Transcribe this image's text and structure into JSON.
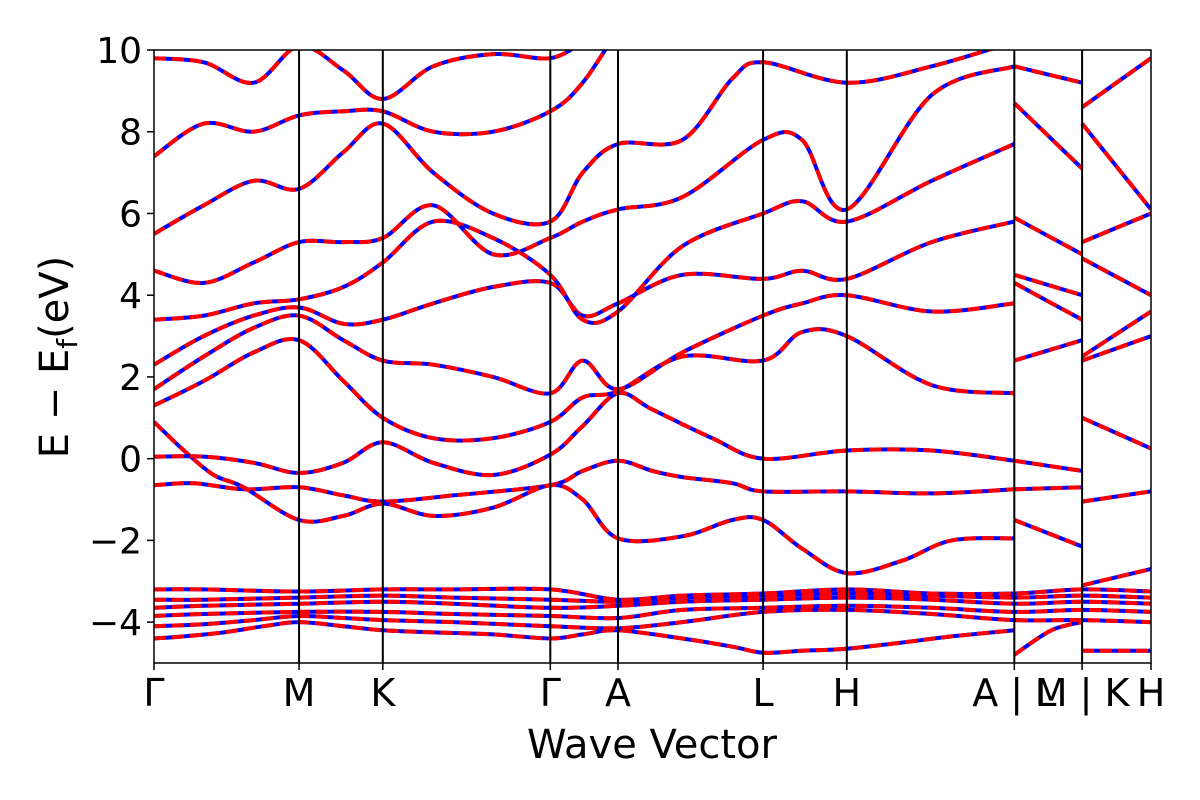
{
  "chart_data": {
    "type": "line",
    "title": "",
    "xlabel": "Wave Vector",
    "ylabel": "E − E",
    "ylabel_sub": "f",
    "ylabel_unit": "(eV)",
    "ylim": [
      -5,
      10
    ],
    "yticks": [
      {
        "value": 10,
        "label": "10"
      },
      {
        "value": 8,
        "label": "8"
      },
      {
        "value": 6,
        "label": "6"
      },
      {
        "value": 4,
        "label": "4"
      },
      {
        "value": 2,
        "label": "2"
      },
      {
        "value": 0,
        "label": "0"
      },
      {
        "value": -2,
        "label": "−2"
      },
      {
        "value": -4,
        "label": "−4"
      }
    ],
    "xlim": [
      0,
      1
    ],
    "kpoints": [
      {
        "pos": 0.0,
        "label": "Γ"
      },
      {
        "pos": 0.1455,
        "label": "M"
      },
      {
        "pos": 0.2295,
        "label": "K"
      },
      {
        "pos": 0.3975,
        "label": "Γ"
      },
      {
        "pos": 0.4654,
        "label": "A"
      },
      {
        "pos": 0.6109,
        "label": "L"
      },
      {
        "pos": 0.6949,
        "label": "H"
      },
      {
        "pos": 0.8629,
        "label": "A | L"
      },
      {
        "pos": 0.9309,
        "label": "M | K"
      },
      {
        "pos": 1.0,
        "label": "H"
      }
    ],
    "grid": false,
    "legend": "none",
    "series_styles": [
      {
        "color": "#0000ff",
        "style": "solid"
      },
      {
        "color": "#ff0000",
        "style": "dashed"
      }
    ],
    "bands": [
      [
        [
          0.0,
          -4.4
        ],
        [
          0.03,
          -4.35
        ],
        [
          0.07,
          -4.25
        ],
        [
          0.11,
          -4.1
        ],
        [
          0.1455,
          -4.0
        ],
        [
          0.19,
          -4.1
        ],
        [
          0.2295,
          -4.2
        ],
        [
          0.28,
          -4.25
        ],
        [
          0.34,
          -4.3
        ],
        [
          0.3975,
          -4.4
        ],
        [
          0.43,
          -4.3
        ],
        [
          0.4654,
          -4.2
        ],
        [
          0.53,
          -4.4
        ],
        [
          0.58,
          -4.6
        ],
        [
          0.6109,
          -4.75
        ],
        [
          0.65,
          -4.7
        ],
        [
          0.6949,
          -4.65
        ],
        [
          0.75,
          -4.5
        ],
        [
          0.8,
          -4.35
        ],
        [
          0.8629,
          -4.2
        ],
        [
          0.8629,
          -4.8
        ],
        [
          0.9,
          -4.2
        ],
        [
          0.9309,
          -4.0
        ],
        [
          0.9309,
          -4.7
        ],
        [
          1.0,
          -4.7
        ]
      ],
      [
        [
          0.0,
          -4.1
        ],
        [
          0.05,
          -4.05
        ],
        [
          0.1,
          -3.95
        ],
        [
          0.1455,
          -3.85
        ],
        [
          0.19,
          -3.9
        ],
        [
          0.2295,
          -3.95
        ],
        [
          0.3,
          -4.0
        ],
        [
          0.3975,
          -4.1
        ],
        [
          0.4654,
          -4.15
        ],
        [
          0.53,
          -4.0
        ],
        [
          0.6109,
          -3.75
        ],
        [
          0.6949,
          -3.7
        ],
        [
          0.78,
          -3.8
        ],
        [
          0.8629,
          -3.95
        ],
        [
          0.9309,
          -3.95
        ],
        [
          1.0,
          -4.0
        ]
      ],
      [
        [
          0.0,
          -3.85
        ],
        [
          0.05,
          -3.8
        ],
        [
          0.1455,
          -3.75
        ],
        [
          0.2295,
          -3.75
        ],
        [
          0.3,
          -3.8
        ],
        [
          0.3975,
          -3.85
        ],
        [
          0.4654,
          -3.9
        ],
        [
          0.53,
          -3.7
        ],
        [
          0.6109,
          -3.65
        ],
        [
          0.6949,
          -3.6
        ],
        [
          0.78,
          -3.65
        ],
        [
          0.8629,
          -3.75
        ],
        [
          0.9309,
          -3.7
        ],
        [
          1.0,
          -3.75
        ]
      ],
      [
        [
          0.0,
          -3.65
        ],
        [
          0.05,
          -3.6
        ],
        [
          0.1455,
          -3.55
        ],
        [
          0.2295,
          -3.5
        ],
        [
          0.3,
          -3.55
        ],
        [
          0.3975,
          -3.65
        ],
        [
          0.4654,
          -3.6
        ],
        [
          0.53,
          -3.5
        ],
        [
          0.6109,
          -3.45
        ],
        [
          0.6949,
          -3.4
        ],
        [
          0.78,
          -3.45
        ],
        [
          0.8629,
          -3.55
        ],
        [
          0.9309,
          -3.5
        ],
        [
          1.0,
          -3.55
        ]
      ],
      [
        [
          0.0,
          -3.45
        ],
        [
          0.05,
          -3.45
        ],
        [
          0.1455,
          -3.4
        ],
        [
          0.2295,
          -3.35
        ],
        [
          0.3,
          -3.4
        ],
        [
          0.3975,
          -3.45
        ],
        [
          0.4654,
          -3.5
        ],
        [
          0.53,
          -3.4
        ],
        [
          0.6109,
          -3.35
        ],
        [
          0.6949,
          -3.3
        ],
        [
          0.78,
          -3.35
        ],
        [
          0.8629,
          -3.4
        ],
        [
          0.9309,
          -3.35
        ],
        [
          1.0,
          -3.4
        ]
      ],
      [
        [
          0.0,
          -3.2
        ],
        [
          0.05,
          -3.2
        ],
        [
          0.1455,
          -3.25
        ],
        [
          0.2295,
          -3.2
        ],
        [
          0.3,
          -3.2
        ],
        [
          0.3975,
          -3.2
        ],
        [
          0.4654,
          -3.45
        ],
        [
          0.53,
          -3.35
        ],
        [
          0.6109,
          -3.3
        ],
        [
          0.6949,
          -3.2
        ],
        [
          0.78,
          -3.3
        ],
        [
          0.8629,
          -3.3
        ],
        [
          0.9309,
          -3.2
        ],
        [
          1.0,
          -3.25
        ]
      ],
      [
        [
          0.0,
          -0.65
        ],
        [
          0.04,
          -0.6
        ],
        [
          0.09,
          -0.75
        ],
        [
          0.1455,
          -0.7
        ],
        [
          0.19,
          -0.9
        ],
        [
          0.2295,
          -1.05
        ],
        [
          0.3,
          -0.9
        ],
        [
          0.3975,
          -0.65
        ],
        [
          0.43,
          -0.3
        ],
        [
          0.4654,
          -0.05
        ],
        [
          0.5,
          -0.3
        ],
        [
          0.53,
          -0.45
        ],
        [
          0.58,
          -0.6
        ],
        [
          0.6109,
          -0.8
        ],
        [
          0.6949,
          -0.8
        ],
        [
          0.78,
          -0.85
        ],
        [
          0.8629,
          -0.75
        ],
        [
          0.8629,
          -0.75
        ],
        [
          0.9309,
          -0.7
        ],
        [
          0.9309,
          -1.05
        ],
        [
          1.0,
          -0.8
        ]
      ],
      [
        [
          0.0,
          0.9
        ],
        [
          0.03,
          0.2
        ],
        [
          0.06,
          -0.4
        ],
        [
          0.09,
          -0.7
        ],
        [
          0.1455,
          -1.5
        ],
        [
          0.19,
          -1.4
        ],
        [
          0.2295,
          -1.1
        ],
        [
          0.28,
          -1.4
        ],
        [
          0.34,
          -1.2
        ],
        [
          0.3975,
          -0.65
        ],
        [
          0.43,
          -1.0
        ],
        [
          0.4654,
          -1.95
        ],
        [
          0.53,
          -1.9
        ],
        [
          0.58,
          -1.5
        ],
        [
          0.6109,
          -1.5
        ],
        [
          0.65,
          -2.2
        ],
        [
          0.6949,
          -2.8
        ],
        [
          0.75,
          -2.5
        ],
        [
          0.8,
          -2.0
        ],
        [
          0.8629,
          -1.95
        ],
        [
          0.8629,
          -1.5
        ],
        [
          0.9309,
          -2.15
        ],
        [
          0.9309,
          -3.1
        ],
        [
          1.0,
          -2.7
        ]
      ],
      [
        [
          0.0,
          0.05
        ],
        [
          0.05,
          0.05
        ],
        [
          0.1,
          -0.1
        ],
        [
          0.1455,
          -0.35
        ],
        [
          0.19,
          -0.1
        ],
        [
          0.2295,
          0.4
        ],
        [
          0.28,
          -0.1
        ],
        [
          0.34,
          -0.4
        ],
        [
          0.3975,
          0.1
        ],
        [
          0.43,
          0.8
        ],
        [
          0.4654,
          1.6
        ],
        [
          0.5,
          1.2
        ],
        [
          0.56,
          0.5
        ],
        [
          0.6109,
          0.0
        ],
        [
          0.6949,
          0.2
        ],
        [
          0.78,
          0.2
        ],
        [
          0.8629,
          -0.05
        ],
        [
          0.8629,
          -0.05
        ],
        [
          0.9309,
          -0.3
        ],
        [
          0.9309,
          1.0
        ],
        [
          1.0,
          0.25
        ]
      ],
      [
        [
          0.0,
          1.3
        ],
        [
          0.05,
          1.9
        ],
        [
          0.1,
          2.6
        ],
        [
          0.1455,
          2.9
        ],
        [
          0.19,
          1.9
        ],
        [
          0.2295,
          1.0
        ],
        [
          0.28,
          0.5
        ],
        [
          0.34,
          0.5
        ],
        [
          0.3975,
          0.9
        ],
        [
          0.43,
          1.5
        ],
        [
          0.4654,
          1.65
        ],
        [
          0.53,
          2.5
        ],
        [
          0.6109,
          2.4
        ],
        [
          0.65,
          3.1
        ],
        [
          0.6949,
          3.0
        ],
        [
          0.78,
          1.8
        ],
        [
          0.8629,
          1.6
        ],
        [
          0.8629,
          2.4
        ],
        [
          0.9309,
          2.9
        ],
        [
          0.9309,
          2.4
        ],
        [
          1.0,
          3.0
        ]
      ],
      [
        [
          0.0,
          1.7
        ],
        [
          0.05,
          2.5
        ],
        [
          0.1,
          3.2
        ],
        [
          0.1455,
          3.5
        ],
        [
          0.19,
          2.9
        ],
        [
          0.2295,
          2.4
        ],
        [
          0.28,
          2.3
        ],
        [
          0.34,
          2.0
        ],
        [
          0.3975,
          1.6
        ],
        [
          0.43,
          2.4
        ],
        [
          0.4654,
          1.7
        ],
        [
          0.53,
          2.6
        ],
        [
          0.6109,
          3.5
        ],
        [
          0.65,
          3.8
        ],
        [
          0.6949,
          4.0
        ],
        [
          0.78,
          3.6
        ],
        [
          0.8629,
          3.8
        ],
        [
          0.8629,
          4.3
        ],
        [
          0.9309,
          3.4
        ],
        [
          0.9309,
          2.5
        ],
        [
          1.0,
          3.6
        ]
      ],
      [
        [
          0.0,
          2.3
        ],
        [
          0.05,
          3.0
        ],
        [
          0.1,
          3.5
        ],
        [
          0.1455,
          3.7
        ],
        [
          0.19,
          3.3
        ],
        [
          0.2295,
          3.4
        ],
        [
          0.28,
          3.8
        ],
        [
          0.34,
          4.2
        ],
        [
          0.3975,
          4.3
        ],
        [
          0.43,
          3.5
        ],
        [
          0.4654,
          3.8
        ],
        [
          0.53,
          4.5
        ],
        [
          0.6109,
          4.4
        ],
        [
          0.65,
          4.6
        ],
        [
          0.6949,
          4.4
        ],
        [
          0.78,
          5.3
        ],
        [
          0.8629,
          5.8
        ],
        [
          0.8629,
          4.5
        ],
        [
          0.9309,
          4.0
        ],
        [
          0.9309,
          4.9
        ],
        [
          1.0,
          4.0
        ]
      ],
      [
        [
          0.0,
          3.4
        ],
        [
          0.05,
          3.5
        ],
        [
          0.1,
          3.8
        ],
        [
          0.1455,
          3.9
        ],
        [
          0.19,
          4.2
        ],
        [
          0.2295,
          4.8
        ],
        [
          0.28,
          5.8
        ],
        [
          0.34,
          5.4
        ],
        [
          0.3975,
          4.5
        ],
        [
          0.43,
          3.4
        ],
        [
          0.4654,
          3.6
        ],
        [
          0.53,
          5.2
        ],
        [
          0.6109,
          6.0
        ],
        [
          0.65,
          6.3
        ],
        [
          0.6949,
          5.8
        ],
        [
          0.78,
          6.8
        ],
        [
          0.8629,
          7.7
        ],
        [
          0.8629,
          5.9
        ],
        [
          0.9309,
          5.0
        ],
        [
          0.9309,
          5.3
        ],
        [
          1.0,
          6.0
        ]
      ],
      [
        [
          0.0,
          4.6
        ],
        [
          0.05,
          4.3
        ],
        [
          0.1,
          4.8
        ],
        [
          0.1455,
          5.3
        ],
        [
          0.19,
          5.3
        ],
        [
          0.2295,
          5.4
        ],
        [
          0.28,
          6.2
        ],
        [
          0.34,
          5.0
        ],
        [
          0.3975,
          5.4
        ],
        [
          0.43,
          5.8
        ],
        [
          0.4654,
          6.1
        ],
        [
          0.53,
          6.4
        ],
        [
          0.6109,
          7.8
        ],
        [
          0.65,
          7.8
        ],
        [
          0.6949,
          6.1
        ],
        [
          0.78,
          8.9
        ],
        [
          0.8629,
          9.6
        ],
        [
          0.8629,
          8.7
        ],
        [
          0.9309,
          7.1
        ],
        [
          0.9309,
          8.2
        ],
        [
          1.0,
          6.1
        ]
      ],
      [
        [
          0.0,
          5.5
        ],
        [
          0.05,
          6.2
        ],
        [
          0.1,
          6.8
        ],
        [
          0.1455,
          6.6
        ],
        [
          0.19,
          7.5
        ],
        [
          0.2295,
          8.2
        ],
        [
          0.28,
          7.0
        ],
        [
          0.34,
          6.0
        ],
        [
          0.3975,
          5.8
        ],
        [
          0.43,
          7.0
        ],
        [
          0.4654,
          7.7
        ],
        [
          0.53,
          7.8
        ],
        [
          0.58,
          9.3
        ],
        [
          0.6109,
          9.7
        ],
        [
          0.6949,
          9.2
        ],
        [
          0.78,
          9.6
        ],
        [
          0.8629,
          10.2
        ],
        [
          0.8629,
          9.6
        ],
        [
          0.9309,
          9.2
        ],
        [
          0.9309,
          8.6
        ],
        [
          1.0,
          9.8
        ]
      ],
      [
        [
          0.0,
          7.4
        ],
        [
          0.05,
          8.2
        ],
        [
          0.1,
          8.0
        ],
        [
          0.1455,
          8.4
        ],
        [
          0.19,
          8.5
        ],
        [
          0.2295,
          8.5
        ],
        [
          0.28,
          8.0
        ],
        [
          0.34,
          8.0
        ],
        [
          0.3975,
          8.5
        ],
        [
          0.43,
          9.2
        ],
        [
          0.4654,
          10.5
        ]
      ],
      [
        [
          0.0,
          9.8
        ],
        [
          0.05,
          9.7
        ],
        [
          0.1,
          9.2
        ],
        [
          0.1455,
          10.1
        ],
        [
          0.19,
          9.5
        ],
        [
          0.2295,
          8.8
        ],
        [
          0.28,
          9.6
        ],
        [
          0.34,
          9.9
        ],
        [
          0.3975,
          9.8
        ],
        [
          0.43,
          10.2
        ]
      ]
    ]
  }
}
